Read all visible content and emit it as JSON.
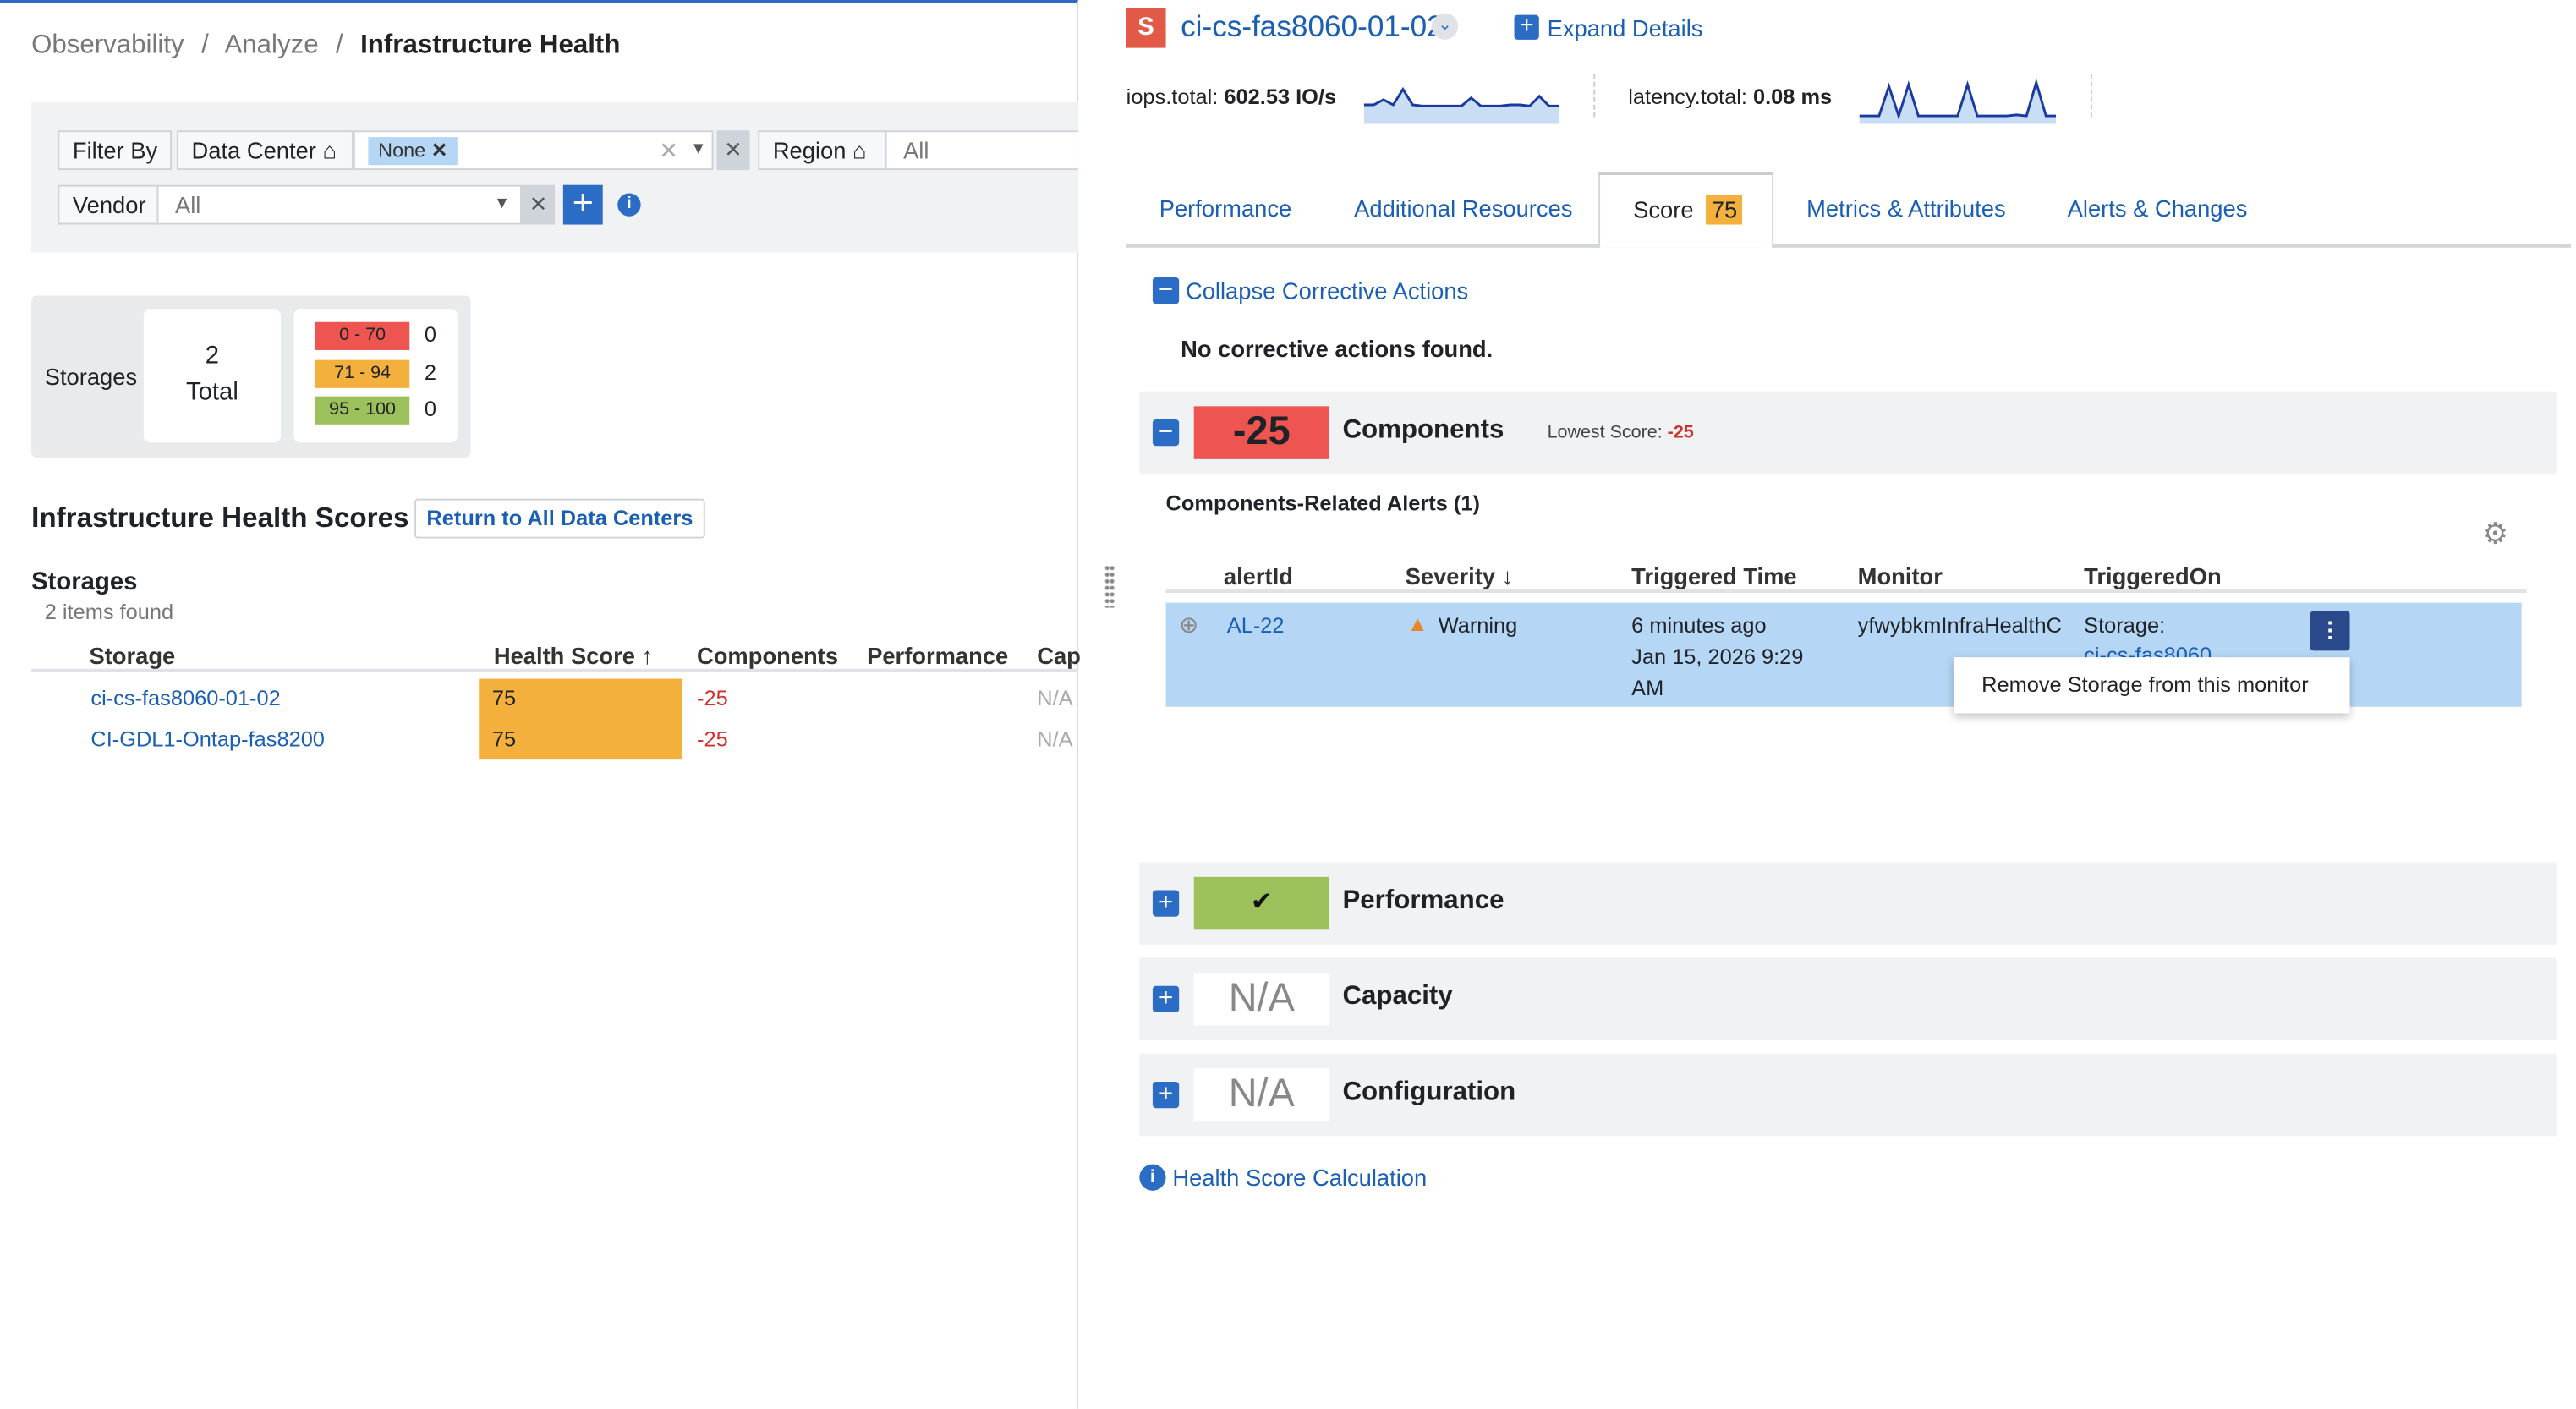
{
  "breadcrumb": {
    "items": [
      "Observability",
      "Analyze"
    ],
    "current": "Infrastructure Health",
    "sep": "/"
  },
  "filters": {
    "filter_by": "Filter By",
    "data_center_label": "Data Center",
    "data_center_chip": "None",
    "region_label": "Region",
    "region_value": "All",
    "vendor_label": "Vendor",
    "vendor_value": "All"
  },
  "summary": {
    "label": "Storages",
    "total_count": "2",
    "total_label": "Total",
    "ranges": [
      {
        "label": "0 - 70",
        "count": "0",
        "color": "#ee5450"
      },
      {
        "label": "71 - 94",
        "count": "2",
        "color": "#f4b03c"
      },
      {
        "label": "95 - 100",
        "count": "0",
        "color": "#9cc15a"
      }
    ]
  },
  "scores": {
    "title": "Infrastructure Health Scores",
    "return_button": "Return to All Data Centers",
    "section": "Storages",
    "items_found": "2 items found",
    "columns": [
      "Storage",
      "Health Score",
      "Components",
      "Performance",
      "Cap"
    ],
    "rows": [
      {
        "storage": "ci-cs-fas8060-01-02",
        "health": "75",
        "components": "-25",
        "cap": "N/A"
      },
      {
        "storage": "CI-GDL1-Ontap-fas8200",
        "health": "75",
        "components": "-25",
        "cap": "N/A"
      }
    ]
  },
  "detail": {
    "badge": "S",
    "title": "ci-cs-fas8060-01-02",
    "expand": "Expand Details",
    "metrics": [
      {
        "label": "iops.total:",
        "value": "602.53 IO/s"
      },
      {
        "label": "latency.total:",
        "value": "0.08 ms"
      }
    ],
    "tabs": [
      {
        "label": "Performance"
      },
      {
        "label": "Additional Resources"
      },
      {
        "label": "Score",
        "badge": "75"
      },
      {
        "label": "Metrics & Attributes"
      },
      {
        "label": "Alerts & Changes"
      }
    ],
    "collapse": "Collapse Corrective Actions",
    "no_actions": "No corrective actions found.",
    "components": {
      "score": "-25",
      "title": "Components",
      "lowest_label": "Lowest Score:",
      "lowest_value": "-25"
    },
    "alerts_title": "Components-Related Alerts (1)",
    "alert_columns": [
      "alertId",
      "Severity",
      "Triggered Time",
      "Monitor",
      "TriggeredOn"
    ],
    "alert": {
      "id": "AL-22",
      "severity": "Warning",
      "time1": "6 minutes ago",
      "time2": "Jan 15, 2026 9:29",
      "time3": "AM",
      "monitor": "yfwybkmInfraHealthC",
      "triggered_on": "Storage:",
      "triggered_link": "ci-cs-fas8060"
    },
    "context_menu": "Remove Storage from this monitor",
    "sections": [
      {
        "title": "Performance",
        "score": "✔"
      },
      {
        "title": "Capacity",
        "score": "N/A"
      },
      {
        "title": "Configuration",
        "score": "N/A"
      }
    ],
    "calc_link": "Health Score Calculation"
  },
  "colors": {
    "accent": "#2b6cc4",
    "red": "#ee5450",
    "orange": "#f4b03c",
    "green": "#9cc15a",
    "row_highlight": "#b5d6f4"
  }
}
